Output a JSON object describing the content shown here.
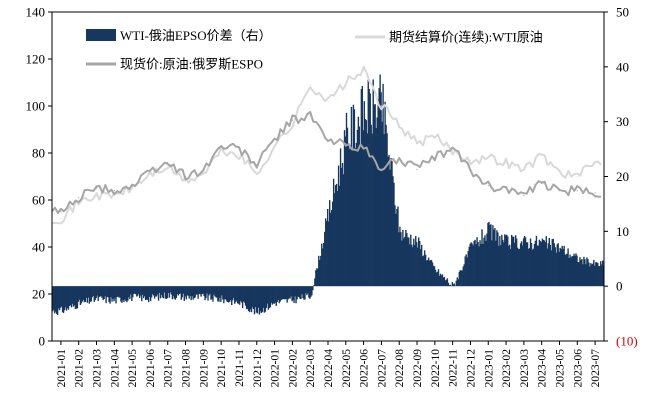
{
  "chart_data": {
    "type": "bar+line",
    "title": "",
    "xlabel": "",
    "ylabel_left": "",
    "ylabel_right": "",
    "ylim_left": [
      0,
      140
    ],
    "ylim_right": [
      -10,
      50
    ],
    "yticks_left": [
      "0",
      "20",
      "40",
      "60",
      "80",
      "100",
      "120",
      "140"
    ],
    "yticks_right": [
      "(10)",
      "0",
      "10",
      "20",
      "30",
      "40",
      "50"
    ],
    "x_categories": [
      "2021-01",
      "2021-02",
      "2021-03",
      "2021-04",
      "2021-05",
      "2021-06",
      "2021-07",
      "2021-08",
      "2021-09",
      "2021-10",
      "2021-11",
      "2021-12",
      "2022-01",
      "2022-02",
      "2022-03",
      "2022-04",
      "2022-05",
      "2022-06",
      "2022-07",
      "2022-08",
      "2022-09",
      "2022-10",
      "2022-11",
      "2022-12",
      "2023-01",
      "2023-02",
      "2023-03",
      "2023-04",
      "2023-05",
      "2023-06",
      "2023-07"
    ],
    "grid": false,
    "legend_position": "top",
    "series": [
      {
        "name": "WTI-俄油EPSO价差（右）",
        "kind": "bar",
        "axis": "right",
        "color": "#17375e",
        "values": [
          -4.5,
          -3.2,
          -2.3,
          -2.6,
          -2.0,
          -2.2,
          -1.6,
          -2.0,
          -2.0,
          -2.4,
          -3.0,
          -4.8,
          -3.0,
          -2.5,
          -1.8,
          13,
          27,
          32,
          33,
          10,
          8,
          3,
          0,
          7,
          10,
          8,
          8,
          8,
          7,
          5,
          4
        ]
      },
      {
        "name": "期货结算价(连续):WTI原油",
        "kind": "line",
        "axis": "left",
        "color": "#d9d9d9",
        "values": [
          52,
          59,
          62,
          62,
          65,
          71,
          74,
          68,
          71,
          81,
          79,
          71,
          83,
          92,
          109,
          102,
          110,
          115,
          100,
          92,
          84,
          87,
          81,
          77,
          78,
          76,
          73,
          79,
          72,
          70,
          76
        ]
      },
      {
        "name": "现货价:原油:俄罗斯ESPO",
        "kind": "line",
        "axis": "left",
        "color": "#a6a6a6",
        "values": [
          55,
          61,
          65,
          64,
          66,
          72,
          76,
          70,
          73,
          83,
          82,
          75,
          86,
          94,
          96,
          85,
          84,
          82,
          73,
          78,
          73,
          78,
          82,
          73,
          66,
          65,
          62,
          67,
          64,
          64,
          63
        ]
      }
    ]
  }
}
